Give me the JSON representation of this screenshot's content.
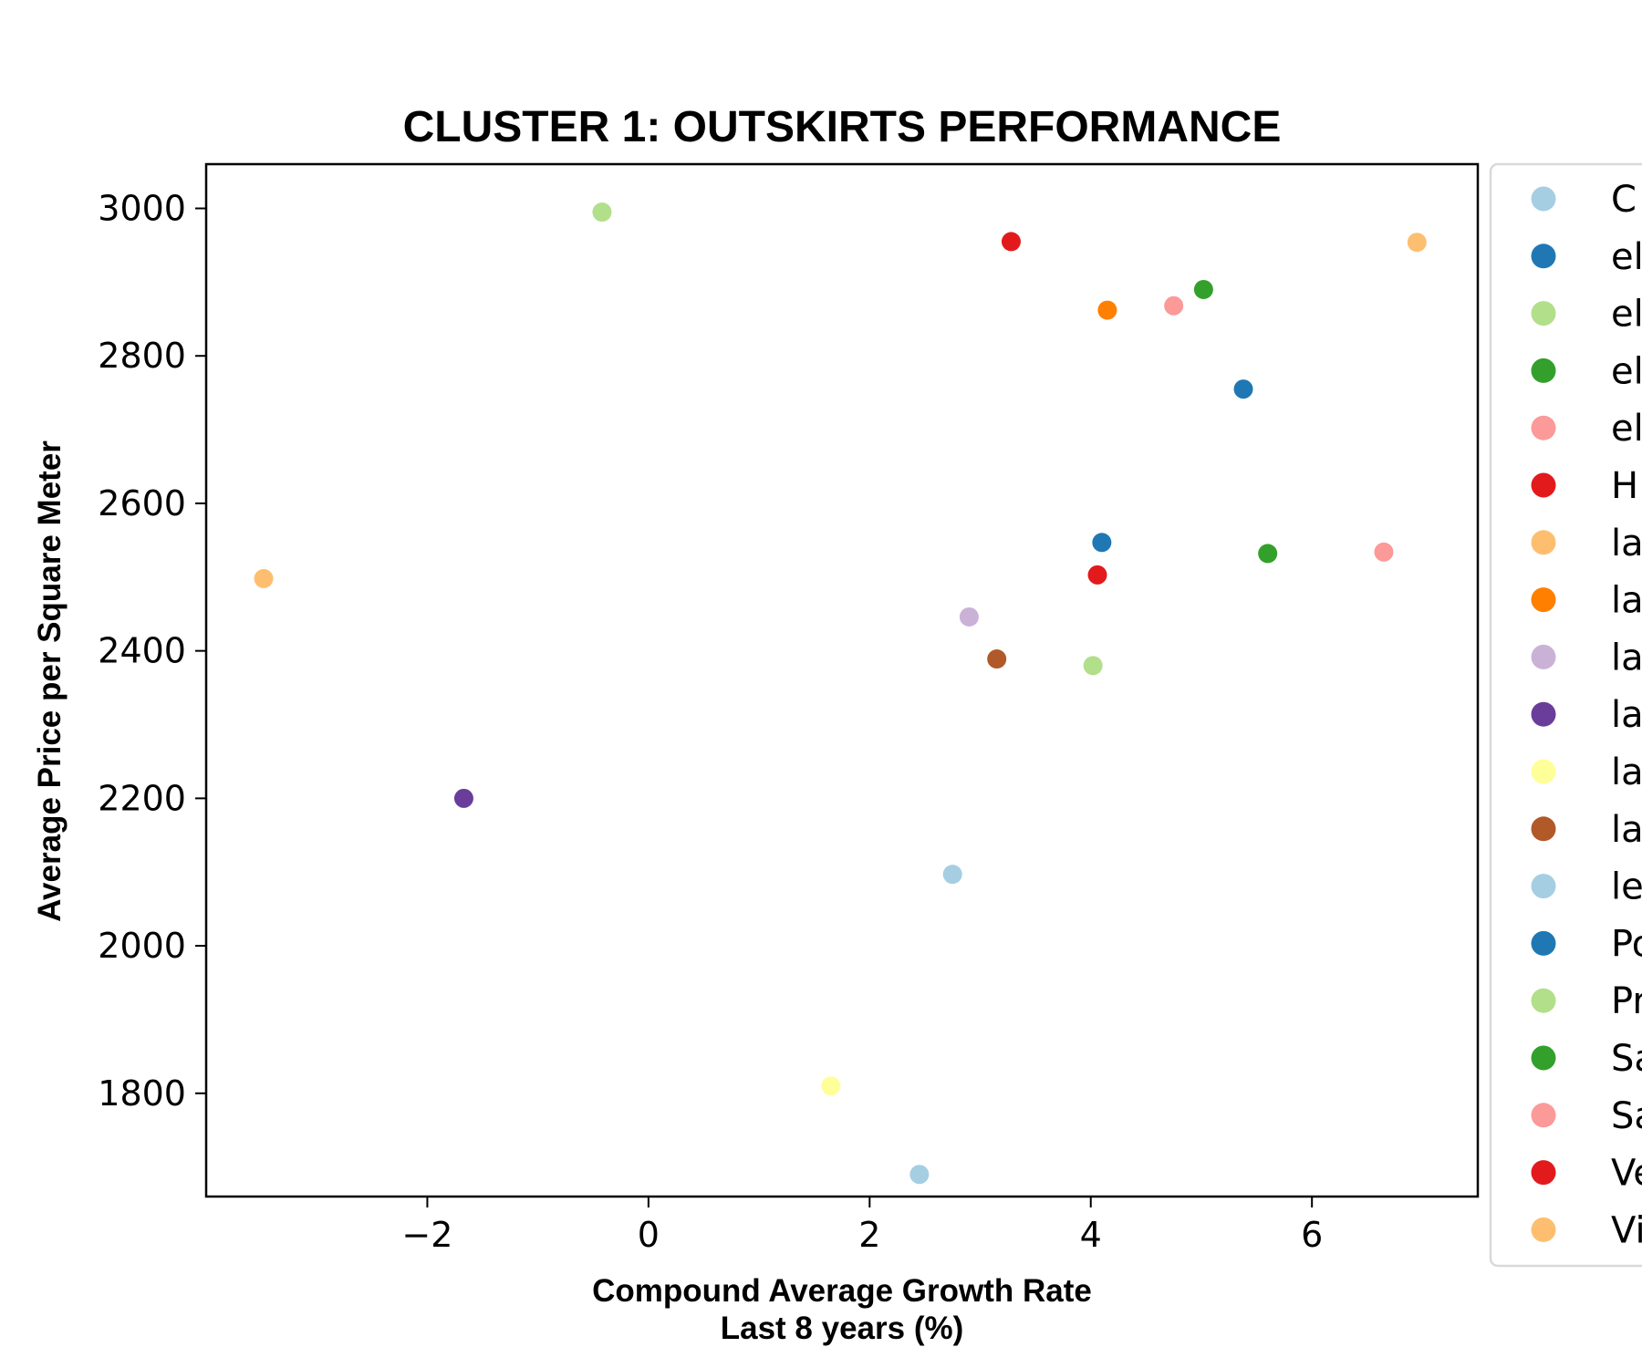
{
  "chart_data": {
    "type": "scatter",
    "title": "CLUSTER 1: OUTSKIRTS PERFORMANCE",
    "xlabel_lines": [
      "Compound Average Growth Rate",
      "Last 8 years (%)"
    ],
    "ylabel": "Average Price per Square Meter",
    "xlim": [
      -4.0,
      7.5
    ],
    "ylim": [
      1660,
      3060
    ],
    "x_ticks": [
      -2,
      0,
      2,
      4,
      6
    ],
    "x_tick_labels": [
      "−2",
      "0",
      "2",
      "4",
      "6"
    ],
    "y_ticks": [
      1800,
      2000,
      2200,
      2400,
      2600,
      2800,
      3000
    ],
    "y_tick_labels": [
      "1800",
      "2000",
      "2200",
      "2400",
      "2600",
      "2800",
      "3000"
    ],
    "grid": false,
    "legend_position": "right-outside-cropped",
    "series": [
      {
        "name": "C",
        "color": "#a6cee3",
        "points": [
          {
            "x": 2.45,
            "y": 1690
          }
        ]
      },
      {
        "name": "el",
        "color": "#1f78b4",
        "points": [
          {
            "x": 5.38,
            "y": 2755
          }
        ]
      },
      {
        "name": "el",
        "color": "#b2df8a",
        "points": [
          {
            "x": -0.42,
            "y": 2995
          }
        ]
      },
      {
        "name": "el",
        "color": "#33a02c",
        "points": [
          {
            "x": 5.02,
            "y": 2890
          }
        ]
      },
      {
        "name": "el",
        "color": "#fb9a99",
        "points": [
          {
            "x": 4.75,
            "y": 2868
          }
        ]
      },
      {
        "name": "H",
        "color": "#e31a1c",
        "points": [
          {
            "x": 3.28,
            "y": 2955
          }
        ]
      },
      {
        "name": "la",
        "color": "#fdbf6f",
        "points": [
          {
            "x": -3.48,
            "y": 2498
          }
        ]
      },
      {
        "name": "la",
        "color": "#ff7f00",
        "points": [
          {
            "x": 4.15,
            "y": 2862
          }
        ]
      },
      {
        "name": "la",
        "color": "#cab2d6",
        "points": [
          {
            "x": 2.9,
            "y": 2446
          }
        ]
      },
      {
        "name": "la",
        "color": "#6a3d9a",
        "points": [
          {
            "x": -1.67,
            "y": 2200
          }
        ]
      },
      {
        "name": "la",
        "color": "#ffff99",
        "points": [
          {
            "x": 1.65,
            "y": 1810
          }
        ]
      },
      {
        "name": "la",
        "color": "#b15928",
        "points": [
          {
            "x": 3.15,
            "y": 2389
          }
        ]
      },
      {
        "name": "le",
        "color": "#a6cee3",
        "points": [
          {
            "x": 2.75,
            "y": 2097
          }
        ]
      },
      {
        "name": "Po",
        "color": "#1f78b4",
        "points": [
          {
            "x": 4.1,
            "y": 2547
          }
        ]
      },
      {
        "name": "Pr",
        "color": "#b2df8a",
        "points": [
          {
            "x": 4.02,
            "y": 2380
          }
        ]
      },
      {
        "name": "Sa",
        "color": "#33a02c",
        "points": [
          {
            "x": 5.6,
            "y": 2532
          }
        ]
      },
      {
        "name": "Sa",
        "color": "#fb9a99",
        "points": [
          {
            "x": 6.65,
            "y": 2534
          }
        ]
      },
      {
        "name": "Ve",
        "color": "#e31a1c",
        "points": [
          {
            "x": 4.06,
            "y": 2503
          }
        ]
      },
      {
        "name": "Vi",
        "color": "#fdbf6f",
        "points": [
          {
            "x": 6.95,
            "y": 2954
          }
        ]
      }
    ]
  }
}
